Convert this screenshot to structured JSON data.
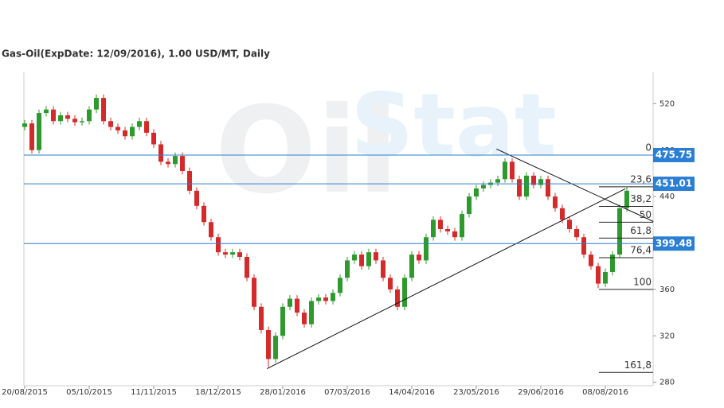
{
  "chart_data": {
    "type": "candlestick",
    "title": "Gas-Oil(ExpDate: 12/09/2016), 1.00 USD/MT, Daily",
    "watermark": [
      "Oil",
      "Stat"
    ],
    "categories": [
      "20/08/2015",
      null,
      null,
      null,
      null,
      null,
      null,
      null,
      null,
      "05/10/2015",
      null,
      null,
      null,
      null,
      null,
      null,
      null,
      null,
      "11/11/2015",
      null,
      null,
      null,
      null,
      null,
      null,
      null,
      null,
      "18/12/2015",
      null,
      null,
      null,
      null,
      null,
      null,
      null,
      null,
      "28/01/2016",
      null,
      null,
      null,
      null,
      null,
      null,
      null,
      null,
      "07/03/2016",
      null,
      null,
      null,
      null,
      null,
      null,
      null,
      null,
      "14/04/2016",
      null,
      null,
      null,
      null,
      null,
      null,
      null,
      null,
      "23/05/2016",
      null,
      null,
      null,
      null,
      null,
      null,
      null,
      null,
      "29/06/2016",
      null,
      null,
      null,
      null,
      null,
      null,
      null,
      null,
      "08/08/2016",
      null,
      null,
      null
    ],
    "open": [
      500,
      503,
      480,
      512,
      515,
      505,
      510,
      507,
      504,
      505,
      515,
      525,
      505,
      500,
      497,
      492,
      500,
      505,
      495,
      485,
      470,
      468,
      475,
      462,
      445,
      432,
      418,
      405,
      392,
      390,
      392,
      388,
      370,
      345,
      325,
      300,
      320,
      345,
      352,
      340,
      330,
      350,
      353,
      350,
      357,
      370,
      385,
      390,
      380,
      392,
      385,
      370,
      360,
      345,
      370,
      390,
      385,
      405,
      420,
      412,
      410,
      405,
      425,
      440,
      447,
      450,
      452,
      455,
      470,
      455,
      440,
      458,
      450,
      455,
      440,
      430,
      420,
      412,
      405,
      390,
      380,
      365,
      375,
      390,
      430
    ],
    "high": [
      506,
      506,
      515,
      518,
      518,
      513,
      513,
      510,
      508,
      518,
      528,
      528,
      508,
      503,
      500,
      503,
      508,
      508,
      498,
      488,
      473,
      478,
      478,
      465,
      448,
      435,
      421,
      408,
      395,
      395,
      395,
      391,
      373,
      348,
      328,
      323,
      348,
      355,
      355,
      343,
      353,
      356,
      356,
      360,
      373,
      388,
      393,
      393,
      395,
      395,
      388,
      373,
      363,
      373,
      393,
      393,
      408,
      423,
      423,
      415,
      413,
      428,
      443,
      450,
      453,
      455,
      458,
      473,
      473,
      458,
      461,
      461,
      458,
      458,
      443,
      433,
      423,
      415,
      408,
      393,
      383,
      378,
      393,
      433,
      448
    ],
    "low": [
      497,
      477,
      477,
      509,
      502,
      502,
      504,
      501,
      501,
      502,
      512,
      502,
      497,
      494,
      489,
      489,
      497,
      492,
      482,
      467,
      465,
      465,
      459,
      442,
      429,
      415,
      402,
      389,
      387,
      387,
      385,
      367,
      342,
      322,
      293,
      297,
      317,
      342,
      337,
      327,
      327,
      347,
      347,
      347,
      354,
      367,
      382,
      377,
      377,
      382,
      367,
      357,
      342,
      342,
      367,
      382,
      382,
      402,
      409,
      407,
      402,
      402,
      422,
      437,
      444,
      447,
      449,
      452,
      452,
      437,
      437,
      447,
      447,
      437,
      427,
      417,
      409,
      402,
      387,
      377,
      361,
      362,
      372,
      387,
      427
    ],
    "close": [
      503,
      480,
      512,
      515,
      505,
      510,
      507,
      504,
      505,
      515,
      525,
      505,
      500,
      497,
      492,
      500,
      505,
      495,
      485,
      470,
      468,
      475,
      462,
      445,
      432,
      418,
      405,
      392,
      390,
      392,
      388,
      370,
      345,
      325,
      300,
      320,
      345,
      352,
      340,
      330,
      350,
      353,
      350,
      357,
      370,
      385,
      390,
      380,
      392,
      385,
      370,
      360,
      345,
      370,
      390,
      385,
      405,
      420,
      412,
      410,
      405,
      425,
      440,
      447,
      450,
      452,
      455,
      470,
      455,
      440,
      458,
      450,
      455,
      440,
      430,
      420,
      412,
      405,
      390,
      380,
      365,
      375,
      390,
      430,
      445
    ],
    "up_color": "#2e9a2e",
    "down_color": "#d42a2a",
    "ylim": [
      277,
      547
    ],
    "yticks": [
      280,
      320,
      360,
      400,
      440,
      480,
      520
    ],
    "price_levels": [
      475.75,
      451.01,
      399.48
    ],
    "level_color": "#2a7fd4",
    "fibonacci": {
      "high": 475.75,
      "low": 360,
      "levels": [
        0,
        {
          "value": 23.6,
          "label": "23,6"
        },
        {
          "value": 38.2,
          "label": "38,2"
        },
        50,
        {
          "value": 61.8,
          "label": "61,8"
        },
        {
          "value": 76.4,
          "label": "76,4"
        },
        100,
        {
          "value": 161.8,
          "label": "161,8"
        }
      ]
    },
    "trendlines": [
      {
        "x": [
          33.8,
          83.8
        ],
        "y": [
          291.7,
          446.7
        ]
      },
      {
        "x": [
          65.8,
          87.7
        ],
        "y": [
          481,
          418.5
        ]
      }
    ]
  }
}
